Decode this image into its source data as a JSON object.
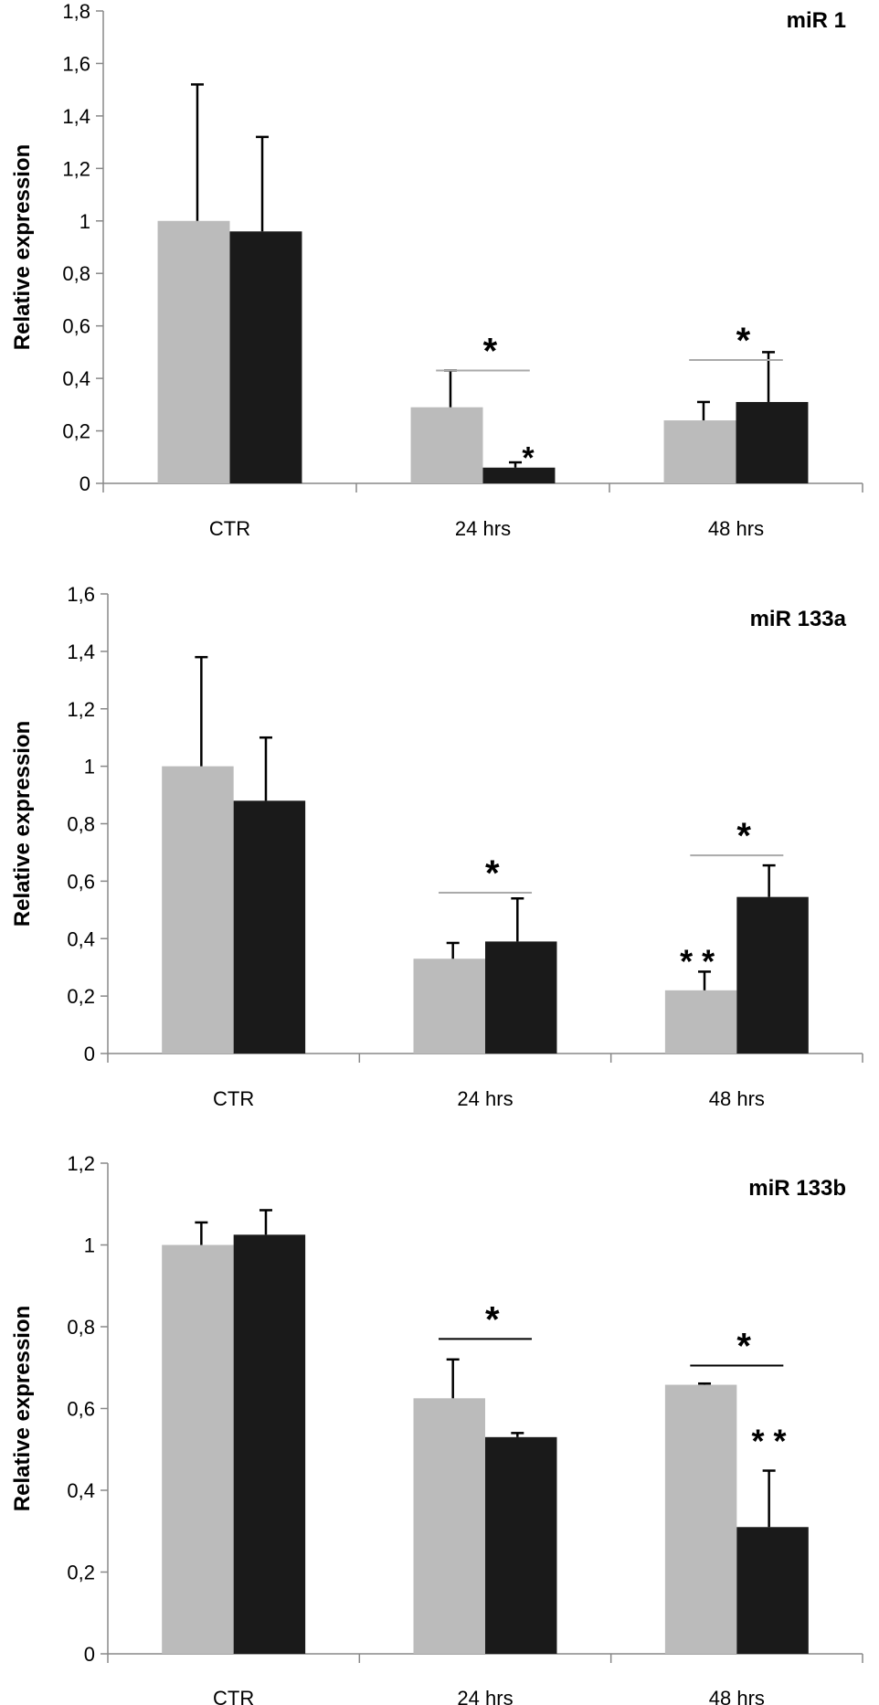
{
  "chart_data": [
    {
      "type": "bar",
      "title": "miR 1",
      "ylabel": "Relative expression",
      "xlabel": "",
      "ylim": [
        0,
        1.8
      ],
      "yticks": [
        "0",
        "0,2",
        "0,4",
        "0,6",
        "0,8",
        "1",
        "1,2",
        "1,4",
        "1,6",
        "1,8"
      ],
      "categories": [
        "CTR",
        "24 hrs",
        "48 hrs"
      ],
      "series": [
        {
          "color": "#bbbbbb",
          "values": [
            1.0,
            0.29,
            0.24
          ],
          "errors": [
            0.52,
            0.14,
            0.07
          ]
        },
        {
          "color": "#1a1a1a",
          "values": [
            0.96,
            0.06,
            0.31
          ],
          "errors": [
            0.36,
            0.02,
            0.19
          ]
        }
      ],
      "annotations": [
        {
          "text": "*",
          "category": 1,
          "kind": "bracket",
          "y": 0.43,
          "bracket_color": "#aaaaaa"
        },
        {
          "text": "*",
          "category": 1,
          "series": 1,
          "y": 0.1
        },
        {
          "text": "*",
          "category": 2,
          "kind": "bracket",
          "y": 0.47,
          "bracket_color": "#aaaaaa"
        }
      ]
    },
    {
      "type": "bar",
      "title": "miR 133a",
      "ylabel": "Relative expression",
      "xlabel": "",
      "ylim": [
        0,
        1.6
      ],
      "yticks": [
        "0",
        "0,2",
        "0,4",
        "0,6",
        "0,8",
        "1",
        "1,2",
        "1,4",
        "1,6"
      ],
      "categories": [
        "CTR",
        "24 hrs",
        "48 hrs"
      ],
      "series": [
        {
          "color": "#bbbbbb",
          "values": [
            1.0,
            0.33,
            0.22
          ],
          "errors": [
            0.38,
            0.055,
            0.065
          ]
        },
        {
          "color": "#1a1a1a",
          "values": [
            0.88,
            0.39,
            0.545
          ],
          "errors": [
            0.22,
            0.15,
            0.11
          ]
        }
      ],
      "annotations": [
        {
          "text": "*",
          "category": 1,
          "kind": "bracket",
          "y": 0.56,
          "bracket_color": "#aaaaaa"
        },
        {
          "text": "* *",
          "category": 2,
          "series": 0,
          "y": 0.32
        },
        {
          "text": "*",
          "category": 2,
          "kind": "bracket",
          "y": 0.69,
          "bracket_color": "#aaaaaa"
        }
      ]
    },
    {
      "type": "bar",
      "title": "miR 133b",
      "ylabel": "Relative expression",
      "xlabel": "",
      "ylim": [
        0,
        1.2
      ],
      "yticks": [
        "0",
        "0,2",
        "0,4",
        "0,6",
        "0,8",
        "1",
        "1,2"
      ],
      "categories": [
        "CTR",
        "24 hrs",
        "48 hrs"
      ],
      "series": [
        {
          "color": "#bbbbbb",
          "values": [
            1.0,
            0.625,
            0.658
          ],
          "errors": [
            0.055,
            0.095,
            0.003
          ]
        },
        {
          "color": "#1a1a1a",
          "values": [
            1.025,
            0.53,
            0.31
          ],
          "errors": [
            0.06,
            0.01,
            0.138
          ]
        }
      ],
      "annotations": [
        {
          "text": "*",
          "category": 1,
          "kind": "bracket",
          "y": 0.77,
          "bracket_color": "#000000"
        },
        {
          "text": "*",
          "category": 2,
          "kind": "bracket",
          "y": 0.705,
          "bracket_color": "#000000"
        },
        {
          "text": "* *",
          "category": 2,
          "series": 1,
          "y": 0.52
        }
      ]
    }
  ]
}
